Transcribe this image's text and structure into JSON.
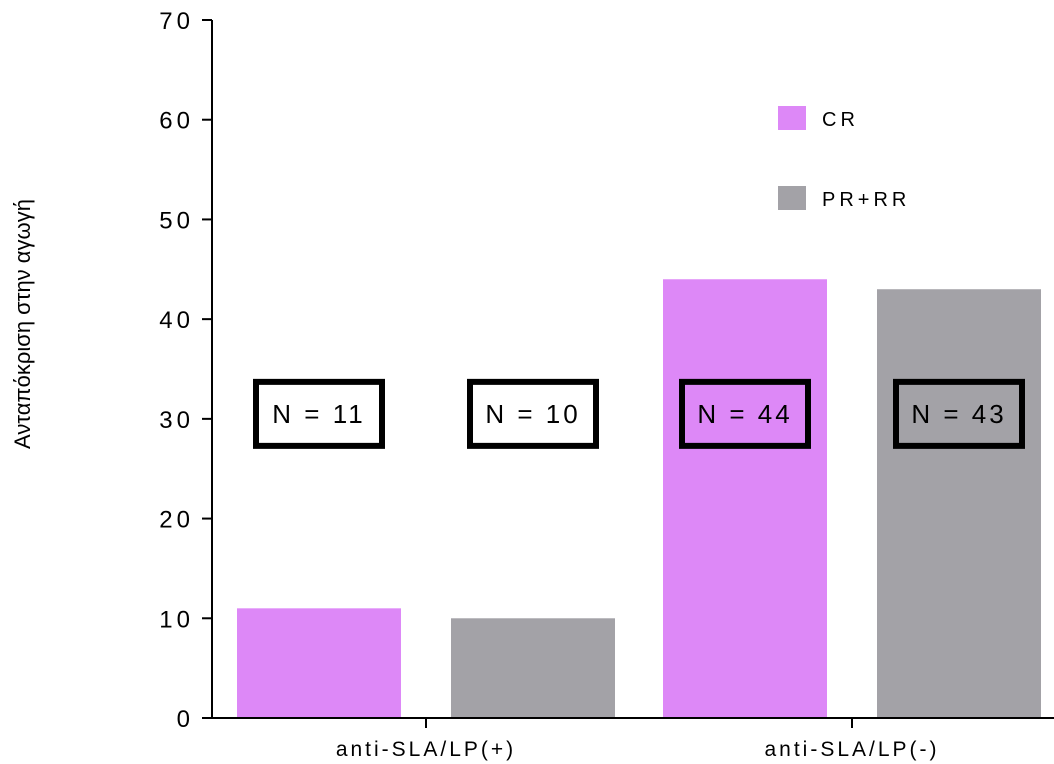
{
  "chart_data": {
    "type": "bar",
    "title": "",
    "xlabel": "",
    "ylabel": "Ανταπόκριση στην αγωγή",
    "ylim": [
      0,
      70
    ],
    "yticks": [
      0,
      10,
      20,
      30,
      40,
      50,
      60,
      70
    ],
    "categories": [
      "anti-SLA/LP(+)",
      "anti-SLA/LP(-)"
    ],
    "series": [
      {
        "name": "CR",
        "color": "#dd88f7",
        "values": [
          11,
          44
        ]
      },
      {
        "name": "PR+RR",
        "color": "#a3a2a7",
        "values": [
          10,
          43
        ]
      }
    ],
    "annotations": [
      [
        "N = 11",
        "N = 10"
      ],
      [
        "N = 44",
        "N = 43"
      ]
    ],
    "annotation_y": 28,
    "legend_position": "top-right",
    "grid": false
  }
}
